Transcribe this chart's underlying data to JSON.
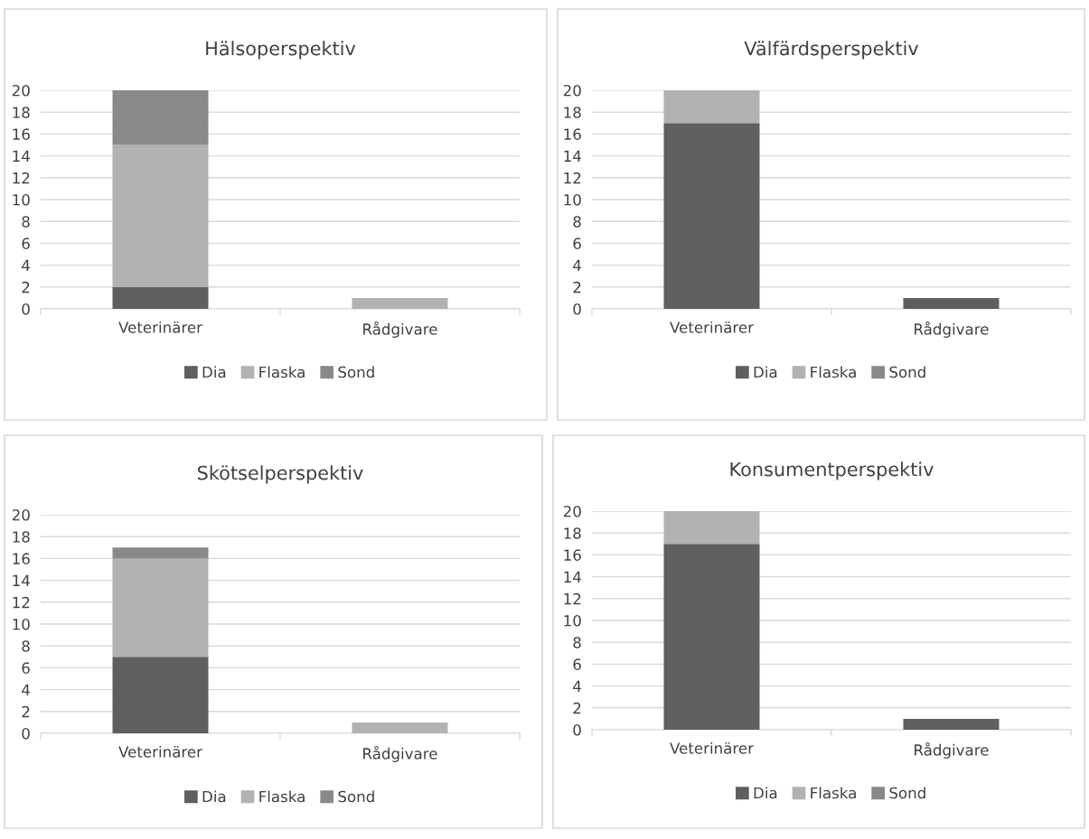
{
  "chart_data": [
    {
      "type": "bar",
      "title": "Hälsoperspektiv",
      "categories": [
        "Veterinärer",
        "Rådgivare"
      ],
      "stacked": true,
      "ylim": [
        0,
        20
      ],
      "yticks": [
        0,
        2,
        4,
        6,
        8,
        10,
        12,
        14,
        16,
        18,
        20
      ],
      "grid": "y",
      "legend": "bottom",
      "series": [
        {
          "name": "Dia",
          "color": "#5f5f5f",
          "values": [
            2,
            0
          ]
        },
        {
          "name": "Flaska",
          "color": "#b2b2b2",
          "values": [
            13,
            1
          ]
        },
        {
          "name": "Sond",
          "color": "#898989",
          "values": [
            5,
            0
          ]
        }
      ]
    },
    {
      "type": "bar",
      "title": "Välfärdsperspektiv",
      "categories": [
        "Veterinärer",
        "Rådgivare"
      ],
      "stacked": true,
      "ylim": [
        0,
        20
      ],
      "yticks": [
        0,
        2,
        4,
        6,
        8,
        10,
        12,
        14,
        16,
        18,
        20
      ],
      "grid": "y",
      "legend": "bottom",
      "series": [
        {
          "name": "Dia",
          "color": "#5f5f5f",
          "values": [
            17,
            1
          ]
        },
        {
          "name": "Flaska",
          "color": "#b2b2b2",
          "values": [
            3,
            0
          ]
        },
        {
          "name": "Sond",
          "color": "#898989",
          "values": [
            0,
            0
          ]
        }
      ]
    },
    {
      "type": "bar",
      "title": "Skötselperspektiv",
      "categories": [
        "Veterinärer",
        "Rådgivare"
      ],
      "stacked": true,
      "ylim": [
        0,
        20
      ],
      "yticks": [
        0,
        2,
        4,
        6,
        8,
        10,
        12,
        14,
        16,
        18,
        20
      ],
      "grid": "y",
      "legend": "bottom",
      "series": [
        {
          "name": "Dia",
          "color": "#5f5f5f",
          "values": [
            7,
            0
          ]
        },
        {
          "name": "Flaska",
          "color": "#b2b2b2",
          "values": [
            9,
            1
          ]
        },
        {
          "name": "Sond",
          "color": "#898989",
          "values": [
            1,
            0
          ]
        }
      ]
    },
    {
      "type": "bar",
      "title": "Konsumentperspektiv",
      "categories": [
        "Veterinärer",
        "Rådgivare"
      ],
      "stacked": true,
      "ylim": [
        0,
        20
      ],
      "yticks": [
        0,
        2,
        4,
        6,
        8,
        10,
        12,
        14,
        16,
        18,
        20
      ],
      "grid": "y",
      "legend": "bottom",
      "series": [
        {
          "name": "Dia",
          "color": "#5f5f5f",
          "values": [
            17,
            1
          ]
        },
        {
          "name": "Flaska",
          "color": "#b2b2b2",
          "values": [
            3,
            0
          ]
        },
        {
          "name": "Sond",
          "color": "#898989",
          "values": [
            0,
            0
          ]
        }
      ]
    }
  ]
}
